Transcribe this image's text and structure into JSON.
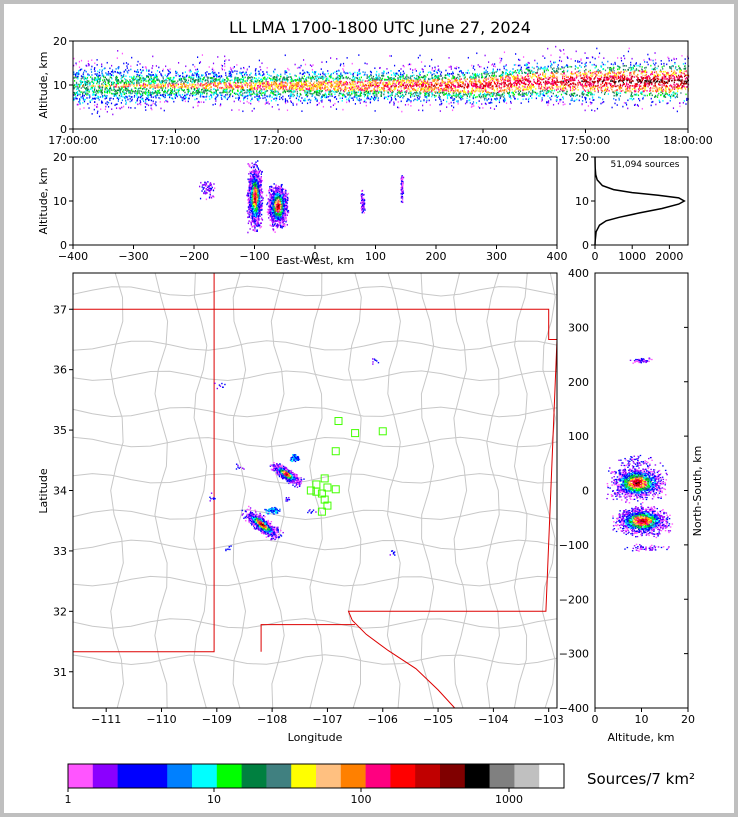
{
  "chart_data": [
    {
      "id": "time_altitude",
      "type": "scatter",
      "title": "LL LMA 1700-1800 UTC June 27, 2024",
      "ylabel": "Altitude, km",
      "xlim_minutes": [
        0,
        60
      ],
      "ylim": [
        0,
        20
      ],
      "x_ticks": [
        "17:00:00",
        "17:10:00",
        "17:20:00",
        "17:30:00",
        "17:40:00",
        "17:50:00",
        "18:00:00"
      ],
      "y_ticks": [
        0,
        10,
        20
      ],
      "band": [
        [
          0,
          10,
          5,
          14
        ],
        [
          5,
          10,
          5,
          14
        ],
        [
          10,
          10,
          6,
          13
        ],
        [
          15,
          10,
          6,
          13
        ],
        [
          20,
          10,
          6,
          13
        ],
        [
          25,
          10,
          6,
          13
        ],
        [
          30,
          10,
          6,
          13
        ],
        [
          35,
          10,
          6,
          13
        ],
        [
          40,
          10,
          6,
          14
        ],
        [
          45,
          11,
          7,
          15
        ],
        [
          50,
          11,
          6,
          15
        ],
        [
          55,
          11,
          6,
          15
        ],
        [
          60,
          11,
          6,
          15
        ]
      ]
    },
    {
      "id": "ew_altitude",
      "type": "scatter",
      "xlabel": "East-West, km",
      "ylabel": "Altitude, km",
      "xlim": [
        -400,
        400
      ],
      "ylim": [
        0,
        20
      ],
      "x_ticks": [
        -400,
        -300,
        -200,
        -100,
        0,
        100,
        200,
        300,
        400
      ],
      "y_ticks": [
        0,
        10,
        20
      ],
      "clusters": [
        [
          -100,
          11,
          10,
          6,
          "dense"
        ],
        [
          -62,
          9,
          14,
          4,
          "dense"
        ],
        [
          -178,
          13,
          12,
          2,
          "sparse"
        ],
        [
          78,
          10,
          3,
          2,
          "sparse"
        ],
        [
          143,
          13,
          2,
          3,
          "sparse"
        ]
      ]
    },
    {
      "id": "altitude_histogram",
      "type": "line",
      "annotation": "51,094 sources",
      "xlim": [
        0,
        2500
      ],
      "ylim": [
        0,
        20
      ],
      "x_ticks": [
        0,
        1000,
        2000
      ],
      "y_ticks": [
        0,
        10,
        20
      ],
      "points": [
        [
          0,
          0
        ],
        [
          5,
          1
        ],
        [
          30,
          3
        ],
        [
          120,
          4.5
        ],
        [
          300,
          5.5
        ],
        [
          650,
          6.3
        ],
        [
          1200,
          7.3
        ],
        [
          1800,
          8.3
        ],
        [
          2250,
          9.3
        ],
        [
          2400,
          10
        ],
        [
          2250,
          10.7
        ],
        [
          1700,
          11.3
        ],
        [
          1000,
          11.9
        ],
        [
          500,
          12.6
        ],
        [
          200,
          13.5
        ],
        [
          60,
          14.8
        ],
        [
          20,
          16
        ],
        [
          5,
          17.5
        ],
        [
          0,
          20
        ]
      ]
    },
    {
      "id": "plan_view",
      "type": "scatter",
      "xlabel": "Longitude",
      "ylabel": "Latitude",
      "xlim": [
        -111.6,
        -102.85
      ],
      "ylim": [
        30.4,
        37.6
      ],
      "x_ticks": [
        -111,
        -110,
        -109,
        -108,
        -107,
        -106,
        -105,
        -104,
        -103
      ],
      "y_ticks": [
        31,
        32,
        33,
        34,
        35,
        36,
        37
      ],
      "state_border": [
        [
          -111.6,
          37.0
        ],
        [
          -103.0,
          37.0
        ],
        [
          -103.0,
          36.5
        ],
        [
          -102.85,
          36.5
        ],
        [
          -103.05,
          32.0
        ],
        [
          -106.62,
          32.0
        ],
        [
          -106.55,
          31.85
        ],
        [
          -106.3,
          31.62
        ],
        [
          -105.9,
          31.35
        ],
        [
          -105.4,
          31.05
        ],
        [
          -105.0,
          30.7
        ],
        [
          -104.7,
          30.4
        ]
      ],
      "az_nm_border": [
        [
          -109.05,
          37.6
        ],
        [
          -109.05,
          31.33
        ],
        [
          -111.6,
          31.33
        ]
      ],
      "mexico_border": [
        [
          -108.2,
          31.33
        ],
        [
          -108.2,
          31.78
        ],
        [
          -106.5,
          31.78
        ]
      ],
      "stations": [
        [
          -106.8,
          35.15
        ],
        [
          -106.5,
          34.95
        ],
        [
          -106.0,
          34.98
        ],
        [
          -106.85,
          34.65
        ],
        [
          -107.05,
          34.2
        ],
        [
          -107.2,
          34.1
        ],
        [
          -107.0,
          34.05
        ],
        [
          -107.3,
          34.0
        ],
        [
          -107.2,
          33.98
        ],
        [
          -107.1,
          33.95
        ],
        [
          -106.85,
          34.02
        ],
        [
          -107.05,
          33.85
        ],
        [
          -107.0,
          33.75
        ],
        [
          -107.1,
          33.65
        ]
      ],
      "storm_cells": [
        [
          -108.2,
          33.45,
          0.32,
          0.1,
          -35,
          "dense"
        ],
        [
          -107.75,
          34.28,
          0.25,
          0.08,
          -30,
          "dense"
        ],
        [
          -107.6,
          34.55,
          0.08,
          0.05,
          0,
          "sparse"
        ],
        [
          -108.0,
          33.68,
          0.12,
          0.05,
          0,
          "sparse"
        ]
      ],
      "isolated": [
        [
          -106.15,
          36.13
        ],
        [
          -108.95,
          35.75
        ],
        [
          -108.6,
          34.4
        ],
        [
          -109.1,
          33.9
        ],
        [
          -108.8,
          33.05
        ],
        [
          -105.85,
          32.98
        ],
        [
          -107.75,
          33.85
        ],
        [
          -107.3,
          33.65
        ]
      ]
    },
    {
      "id": "ns_altitude",
      "type": "scatter",
      "xlabel": "Altitude, km",
      "ylabel": "North-South, km",
      "xlim": [
        0,
        20
      ],
      "ylim": [
        -400,
        400
      ],
      "x_ticks": [
        0,
        10,
        20
      ],
      "y_ticks": [
        -400,
        -300,
        -200,
        -100,
        0,
        100,
        200,
        300,
        400
      ],
      "clusters": [
        [
          10,
          -55,
          5,
          22,
          "dense"
        ],
        [
          9,
          15,
          5,
          26,
          "dense"
        ],
        [
          9,
          55,
          4,
          10,
          "sparse"
        ],
        [
          10,
          240,
          2,
          4,
          "sparse"
        ],
        [
          11,
          -105,
          4,
          6,
          "sparse"
        ]
      ]
    }
  ],
  "colorbar": {
    "label": "Sources/7 km²",
    "tick_labels": [
      "1",
      "10",
      "100",
      "1000"
    ],
    "colors": [
      "#ff55ff",
      "#8b00ff",
      "#0000ff",
      "#0000ff",
      "#0080ff",
      "#00ffff",
      "#00ff00",
      "#008040",
      "#408080",
      "#ffff00",
      "#ffc080",
      "#ff8000",
      "#ff0080",
      "#ff0000",
      "#c00000",
      "#800000",
      "#000000",
      "#808080",
      "#c0c0c0",
      "#ffffff"
    ]
  }
}
